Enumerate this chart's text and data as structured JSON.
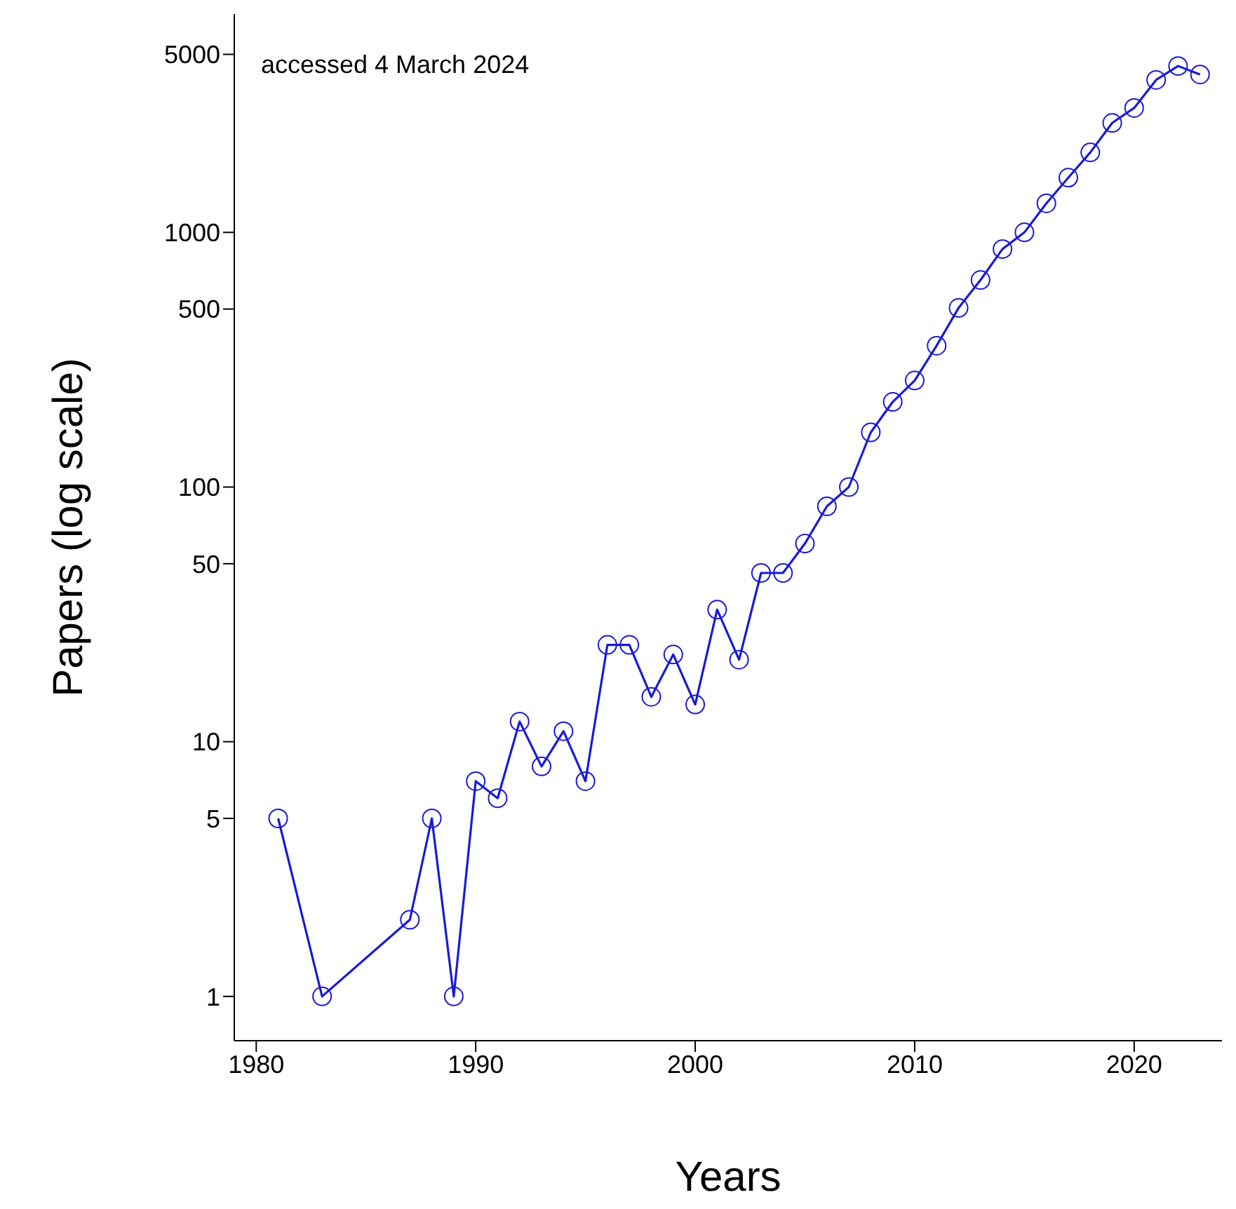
{
  "chart_data": {
    "type": "line",
    "xlabel": "Years",
    "ylabel": "Papers (log scale)",
    "annotations": [
      "accessed 4 March 2024"
    ],
    "x": [
      1981,
      1983,
      1987,
      1988,
      1989,
      1990,
      1991,
      1992,
      1993,
      1994,
      1995,
      1996,
      1997,
      1998,
      1999,
      2000,
      2001,
      2002,
      2003,
      2004,
      2005,
      2006,
      2007,
      2008,
      2009,
      2010,
      2011,
      2012,
      2013,
      2014,
      2015,
      2016,
      2017,
      2018,
      2019,
      2020,
      2021,
      2022,
      2023
    ],
    "series": [
      {
        "color": "#1a1ad6",
        "values": [
          5,
          1,
          2,
          5,
          1,
          7,
          6,
          12,
          8,
          11,
          7,
          24,
          24,
          15,
          22,
          14,
          33,
          21,
          46,
          46,
          60,
          84,
          100,
          164,
          216,
          262,
          359,
          505,
          650,
          860,
          1000,
          1300,
          1640,
          2060,
          2690,
          3080,
          3970,
          4500,
          4170
        ]
      }
    ],
    "log": "y",
    "xlim": [
      1979,
      2024
    ],
    "xticks": [
      1980,
      1990,
      2000,
      2010,
      2020
    ],
    "ylim": [
      0.67,
      7200
    ],
    "yticks": [
      1,
      5,
      10,
      50,
      100,
      500,
      1000,
      5000
    ],
    "marker": "circle",
    "line_style": "solid",
    "legend": false,
    "grid": false
  }
}
